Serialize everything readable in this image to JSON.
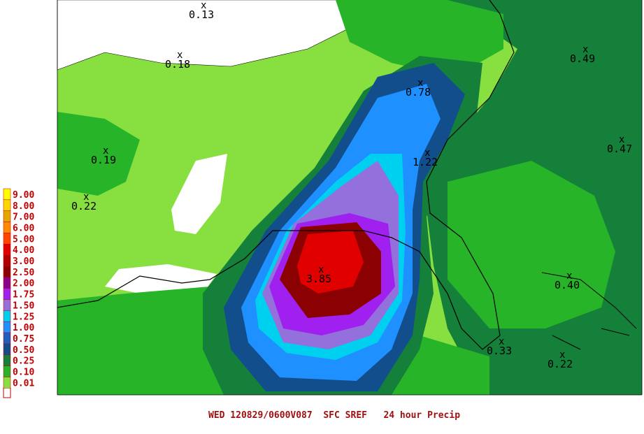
{
  "legend": {
    "items": [
      {
        "label": "9.00",
        "color": "#ffff00"
      },
      {
        "label": "8.00",
        "color": "#ffd700"
      },
      {
        "label": "7.00",
        "color": "#e0a800"
      },
      {
        "label": "6.00",
        "color": "#ff8c00"
      },
      {
        "label": "5.00",
        "color": "#ff4500"
      },
      {
        "label": "4.00",
        "color": "#e00000"
      },
      {
        "label": "3.00",
        "color": "#b00000"
      },
      {
        "label": "2.50",
        "color": "#8b0000"
      },
      {
        "label": "2.00",
        "color": "#8b008b"
      },
      {
        "label": "1.75",
        "color": "#a020f0"
      },
      {
        "label": "1.50",
        "color": "#9370db"
      },
      {
        "label": "1.25",
        "color": "#00d0f0"
      },
      {
        "label": "1.00",
        "color": "#1e90ff"
      },
      {
        "label": "0.75",
        "color": "#1c5fc0"
      },
      {
        "label": "0.50",
        "color": "#124e8c"
      },
      {
        "label": "0.25",
        "color": "#14803a"
      },
      {
        "label": "0.10",
        "color": "#28b428"
      },
      {
        "label": "0.01",
        "color": "#88e040"
      }
    ]
  },
  "points": [
    {
      "label": "0.13"
    },
    {
      "label": "0.18"
    },
    {
      "label": "0.49"
    },
    {
      "label": "0.78"
    },
    {
      "label": "0.19"
    },
    {
      "label": "0.47"
    },
    {
      "label": "1.22"
    },
    {
      "label": "0.22"
    },
    {
      "label": "3.85"
    },
    {
      "label": "0.40"
    },
    {
      "label": "0.33"
    },
    {
      "label": "0.22"
    }
  ],
  "caption": "WED 120829/0600V087  SFC SREF   24 hour Precip"
}
